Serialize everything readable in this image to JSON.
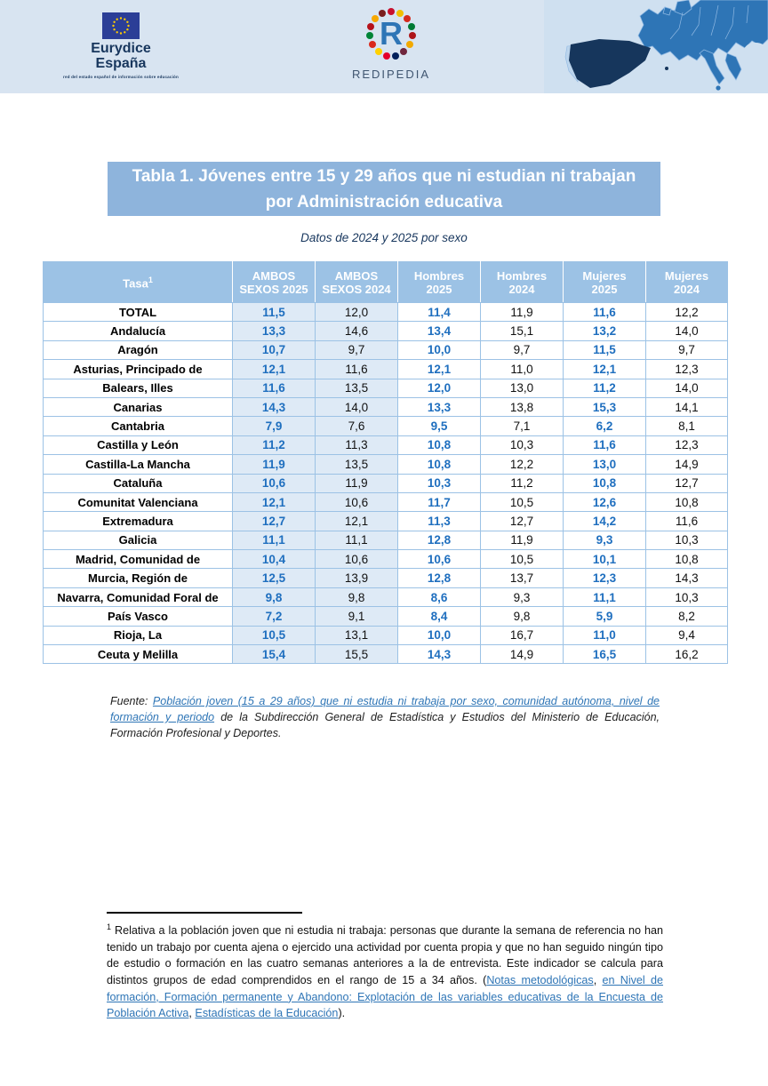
{
  "header": {
    "eurydice": {
      "title": "Eurydice",
      "subtitle": "España",
      "tagline": "red del estado español de información sobre educación"
    },
    "redipedia": {
      "letter": "R",
      "label": "REDIPEDIA"
    },
    "map_alt": "europe-map-spain-highlighted"
  },
  "title": {
    "line1": "Tabla 1. Jóvenes entre 15 y 29 años que ni estudian ni trabajan",
    "line2": "por Administración educativa",
    "subtitle": "Datos de 2024 y 2025 por sexo"
  },
  "table": {
    "columns": [
      {
        "line1": "Tasa",
        "sup": "1"
      },
      {
        "line1": "AMBOS",
        "line2": "SEXOS 2025"
      },
      {
        "line1": "AMBOS",
        "line2": "SEXOS 2024"
      },
      {
        "line1": "Hombres",
        "line2": "2025"
      },
      {
        "line1": "Hombres",
        "line2": "2024"
      },
      {
        "line1": "Mujeres",
        "line2": "2025"
      },
      {
        "line1": "Mujeres",
        "line2": "2024"
      }
    ],
    "rows": [
      {
        "label": "TOTAL",
        "values": [
          "11,5",
          "12,0",
          "11,4",
          "11,9",
          "11,6",
          "12,2"
        ]
      },
      {
        "label": "Andalucía",
        "values": [
          "13,3",
          "14,6",
          "13,4",
          "15,1",
          "13,2",
          "14,0"
        ]
      },
      {
        "label": "Aragón",
        "values": [
          "10,7",
          "9,7",
          "10,0",
          "9,7",
          "11,5",
          "9,7"
        ]
      },
      {
        "label": "Asturias, Principado de",
        "values": [
          "12,1",
          "11,6",
          "12,1",
          "11,0",
          "12,1",
          "12,3"
        ]
      },
      {
        "label": "Balears, Illes",
        "values": [
          "11,6",
          "13,5",
          "12,0",
          "13,0",
          "11,2",
          "14,0"
        ]
      },
      {
        "label": "Canarias",
        "values": [
          "14,3",
          "14,0",
          "13,3",
          "13,8",
          "15,3",
          "14,1"
        ]
      },
      {
        "label": "Cantabria",
        "values": [
          "7,9",
          "7,6",
          "9,5",
          "7,1",
          "6,2",
          "8,1"
        ]
      },
      {
        "label": "Castilla y León",
        "values": [
          "11,2",
          "11,3",
          "10,8",
          "10,3",
          "11,6",
          "12,3"
        ]
      },
      {
        "label": "Castilla-La Mancha",
        "values": [
          "11,9",
          "13,5",
          "10,8",
          "12,2",
          "13,0",
          "14,9"
        ]
      },
      {
        "label": "Cataluña",
        "values": [
          "10,6",
          "11,9",
          "10,3",
          "11,2",
          "10,8",
          "12,7"
        ]
      },
      {
        "label": "Comunitat Valenciana",
        "values": [
          "12,1",
          "10,6",
          "11,7",
          "10,5",
          "12,6",
          "10,8"
        ]
      },
      {
        "label": "Extremadura",
        "values": [
          "12,7",
          "12,1",
          "11,3",
          "12,7",
          "14,2",
          "11,6"
        ]
      },
      {
        "label": "Galicia",
        "values": [
          "11,1",
          "11,1",
          "12,8",
          "11,9",
          "9,3",
          "10,3"
        ]
      },
      {
        "label": "Madrid, Comunidad de",
        "values": [
          "10,4",
          "10,6",
          "10,6",
          "10,5",
          "10,1",
          "10,8"
        ]
      },
      {
        "label": "Murcia, Región de",
        "values": [
          "12,5",
          "13,9",
          "12,8",
          "13,7",
          "12,3",
          "14,3"
        ]
      },
      {
        "label": "Navarra, Comunidad Foral de",
        "values": [
          "9,8",
          "9,8",
          "8,6",
          "9,3",
          "11,1",
          "10,3"
        ]
      },
      {
        "label": "País Vasco",
        "values": [
          "7,2",
          "9,1",
          "8,4",
          "9,8",
          "5,9",
          "8,2"
        ]
      },
      {
        "label": "Rioja, La",
        "values": [
          "10,5",
          "13,1",
          "10,0",
          "16,7",
          "11,0",
          "9,4"
        ]
      },
      {
        "label": "Ceuta y Melilla",
        "values": [
          "15,4",
          "15,5",
          "14,3",
          "14,9",
          "16,5",
          "16,2"
        ]
      }
    ]
  },
  "source": {
    "prefix": "Fuente: ",
    "link": "Población joven (15 a 29 años) que ni estudia ni trabaja por sexo, comunidad autónoma, nivel de formación y periodo",
    "rest": " de la Subdirección General de Estadística y Estudios del Ministerio de Educación, Formación Profesional y Deportes."
  },
  "footnote": {
    "marker": "1",
    "text_main": " Relativa a la población joven que ni estudia ni trabaja: personas que durante la semana de referencia no han tenido un trabajo por cuenta ajena o ejercido una actividad por cuenta propia y que no han seguido ningún tipo de estudio o formación en las cuatro semanas anteriores a la de entrevista. Este indicador se calcula para distintos grupos de edad comprendidos en el rango de 15 a 34 años. (",
    "link1": "Notas metodológicas",
    "sep1": ", ",
    "link2": "en Nivel de formación, Formación permanente y Abandono: Explotación de las variables educativas de la Encuesta de Población Activa",
    "sep2": ", ",
    "link3": "Estadísticas de la Educación",
    "suffix": ")."
  },
  "colors": {
    "band_bg": "#D8E4F1",
    "bar_bg": "#8EB4DC",
    "table_header_bg": "#9CC2E5",
    "shaded_bg": "#DEEAF6",
    "value_blue": "#1F6FBF",
    "link_blue": "#2E75B6",
    "navy": "#17365D",
    "border_blue": "#9CC2E5",
    "map_land": "#2E75B6",
    "map_spain": "#16365C",
    "eu_flag_blue": "#2B3E97",
    "eu_star_yellow": "#FFCC00"
  }
}
